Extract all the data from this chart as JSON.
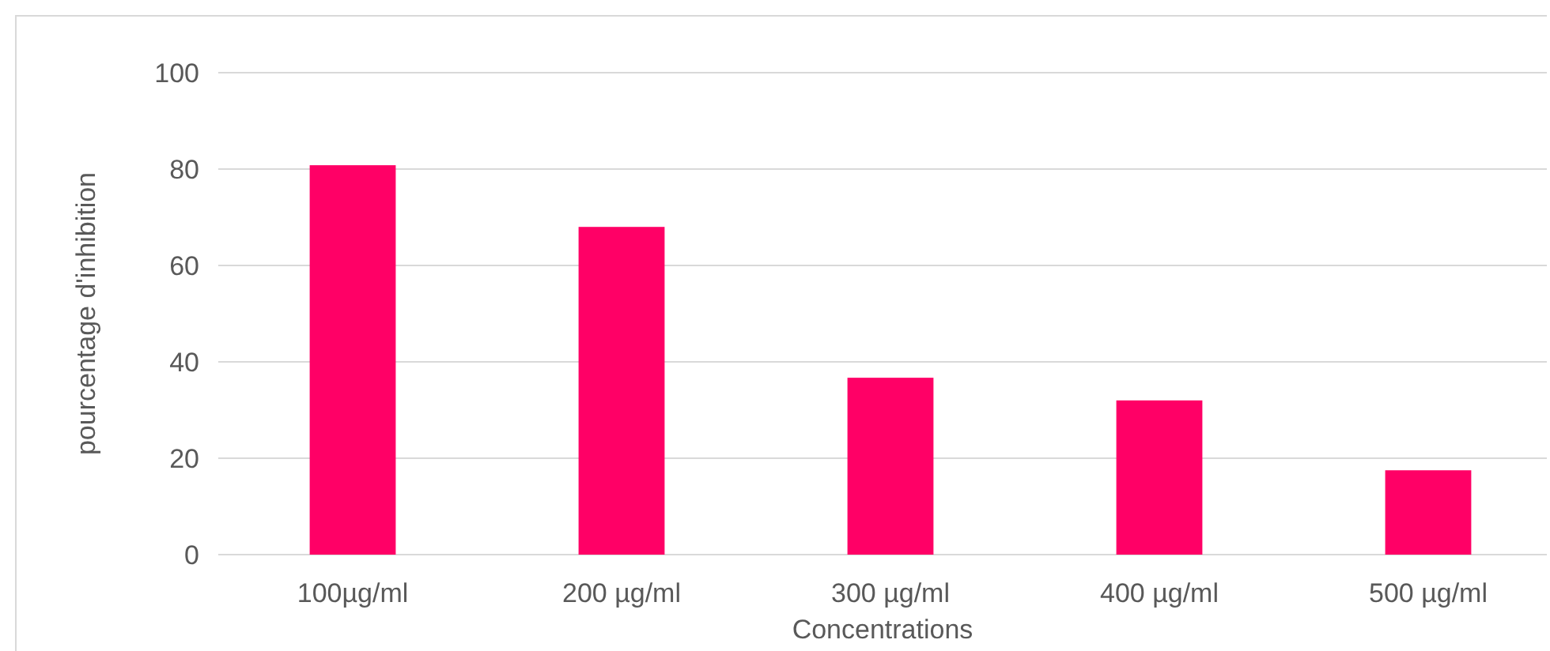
{
  "chart_data": {
    "type": "bar",
    "xlabel": "Concentrations",
    "ylabel": "pourcentage d'inhibition",
    "categories": [
      "100µg/ml",
      "200 µg/ml",
      "300 µg/ml",
      "400 µg/ml",
      "500 µg/ml"
    ],
    "values": [
      80.8,
      68,
      36.7,
      32,
      17.5
    ],
    "color": "#ff0066",
    "ylim": [
      0,
      100
    ],
    "yticks": [
      0,
      20,
      40,
      60,
      80,
      100
    ],
    "grid": "y"
  }
}
